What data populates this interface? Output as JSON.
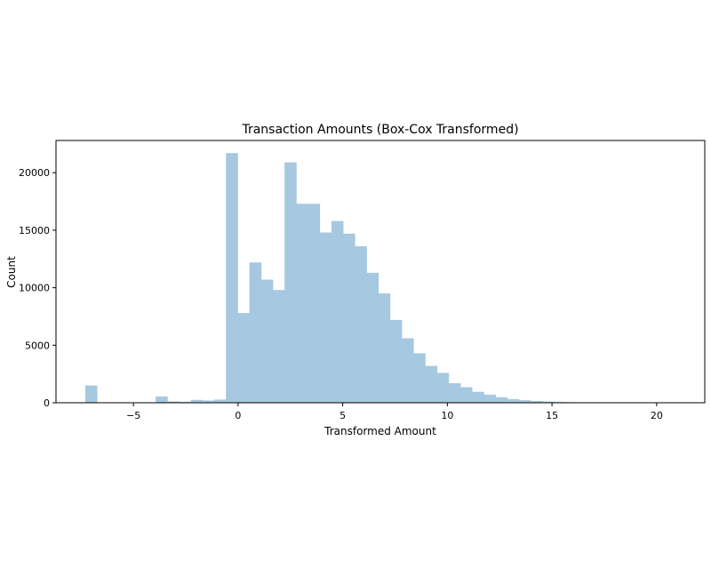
{
  "chart_data": {
    "type": "bar",
    "title": "Transaction Amounts (Box-Cox Transformed)",
    "xlabel": "Transformed Amount",
    "ylabel": "Count",
    "xlim": [
      -8.7,
      22.3
    ],
    "ylim": [
      0,
      22800
    ],
    "xticks": [
      -5,
      0,
      5,
      10,
      15,
      20
    ],
    "xtick_labels": [
      "−5",
      "0",
      "5",
      "10",
      "15",
      "20"
    ],
    "yticks": [
      0,
      5000,
      10000,
      15000,
      20000
    ],
    "ytick_labels": [
      "0",
      "5000",
      "10000",
      "15000",
      "20000"
    ],
    "grid": false,
    "legend": "none",
    "bar_color": "#a6c8e0",
    "bin_width": 0.56,
    "bins": [
      {
        "x0": -7.3,
        "x1": -6.74,
        "count": 1500
      },
      {
        "x0": -6.74,
        "x1": -6.18,
        "count": 0
      },
      {
        "x0": -6.18,
        "x1": -5.62,
        "count": 0
      },
      {
        "x0": -5.62,
        "x1": -5.06,
        "count": 0
      },
      {
        "x0": -5.06,
        "x1": -4.5,
        "count": 0
      },
      {
        "x0": -4.5,
        "x1": -3.94,
        "count": 0
      },
      {
        "x0": -3.94,
        "x1": -3.38,
        "count": 550
      },
      {
        "x0": -3.38,
        "x1": -2.82,
        "count": 120
      },
      {
        "x0": -2.82,
        "x1": -2.26,
        "count": 80
      },
      {
        "x0": -2.26,
        "x1": -1.7,
        "count": 250
      },
      {
        "x0": -1.7,
        "x1": -1.14,
        "count": 200
      },
      {
        "x0": -1.14,
        "x1": -0.58,
        "count": 280
      },
      {
        "x0": -0.58,
        "x1": -0.02,
        "count": 21700
      },
      {
        "x0": -0.02,
        "x1": 0.54,
        "count": 7800
      },
      {
        "x0": 0.54,
        "x1": 1.1,
        "count": 12200
      },
      {
        "x0": 1.1,
        "x1": 1.66,
        "count": 10700
      },
      {
        "x0": 1.66,
        "x1": 2.22,
        "count": 9800
      },
      {
        "x0": 2.22,
        "x1": 2.78,
        "count": 20900
      },
      {
        "x0": 2.78,
        "x1": 3.34,
        "count": 17300
      },
      {
        "x0": 3.34,
        "x1": 3.9,
        "count": 17300
      },
      {
        "x0": 3.9,
        "x1": 4.46,
        "count": 14800
      },
      {
        "x0": 4.46,
        "x1": 5.02,
        "count": 15800
      },
      {
        "x0": 5.02,
        "x1": 5.58,
        "count": 14700
      },
      {
        "x0": 5.58,
        "x1": 6.14,
        "count": 13600
      },
      {
        "x0": 6.14,
        "x1": 6.7,
        "count": 11300
      },
      {
        "x0": 6.7,
        "x1": 7.26,
        "count": 9500
      },
      {
        "x0": 7.26,
        "x1": 7.82,
        "count": 7200
      },
      {
        "x0": 7.82,
        "x1": 8.38,
        "count": 5600
      },
      {
        "x0": 8.38,
        "x1": 8.94,
        "count": 4300
      },
      {
        "x0": 8.94,
        "x1": 9.5,
        "count": 3200
      },
      {
        "x0": 9.5,
        "x1": 10.06,
        "count": 2600
      },
      {
        "x0": 10.06,
        "x1": 10.62,
        "count": 1700
      },
      {
        "x0": 10.62,
        "x1": 11.18,
        "count": 1350
      },
      {
        "x0": 11.18,
        "x1": 11.74,
        "count": 950
      },
      {
        "x0": 11.74,
        "x1": 12.3,
        "count": 700
      },
      {
        "x0": 12.3,
        "x1": 12.86,
        "count": 480
      },
      {
        "x0": 12.86,
        "x1": 13.42,
        "count": 320
      },
      {
        "x0": 13.42,
        "x1": 13.98,
        "count": 220
      },
      {
        "x0": 13.98,
        "x1": 14.54,
        "count": 150
      },
      {
        "x0": 14.54,
        "x1": 15.1,
        "count": 100
      },
      {
        "x0": 15.1,
        "x1": 15.66,
        "count": 70
      },
      {
        "x0": 15.66,
        "x1": 16.22,
        "count": 50
      },
      {
        "x0": 16.22,
        "x1": 16.78,
        "count": 30
      },
      {
        "x0": 16.78,
        "x1": 17.34,
        "count": 20
      },
      {
        "x0": 17.34,
        "x1": 17.9,
        "count": 15
      },
      {
        "x0": 17.9,
        "x1": 18.46,
        "count": 10
      },
      {
        "x0": 18.46,
        "x1": 19.02,
        "count": 8
      },
      {
        "x0": 19.02,
        "x1": 19.58,
        "count": 5
      },
      {
        "x0": 19.58,
        "x1": 20.14,
        "count": 4
      },
      {
        "x0": 20.14,
        "x1": 20.7,
        "count": 3
      },
      {
        "x0": 20.7,
        "x1": 21.26,
        "count": 2
      }
    ]
  }
}
